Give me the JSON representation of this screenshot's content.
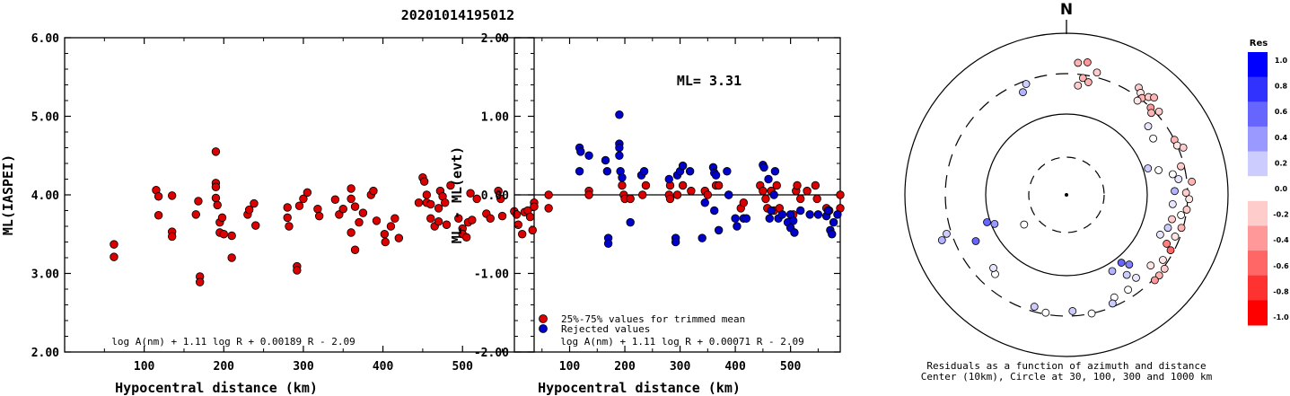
{
  "page_title": "20201014195012",
  "chart_data": [
    {
      "type": "scatter",
      "ylabel": "ML(IASPEI)",
      "xlabel": "Hypocentral distance (km)",
      "xlim": [
        0,
        590
      ],
      "ylim": [
        2.0,
        6.0
      ],
      "xticks": [
        100,
        200,
        300,
        400,
        500
      ],
      "yticks": [
        "2.00",
        "3.00",
        "4.00",
        "5.00",
        "6.00"
      ],
      "formula": "log A(nm) + 1.11 log R + 0.00189 R - 2.09",
      "points": [
        [
          62,
          3.37
        ],
        [
          62,
          3.21
        ],
        [
          115,
          4.06
        ],
        [
          118,
          3.98
        ],
        [
          118,
          3.74
        ],
        [
          135,
          3.99
        ],
        [
          135,
          3.53
        ],
        [
          135,
          3.47
        ],
        [
          165,
          3.75
        ],
        [
          168,
          3.92
        ],
        [
          170,
          2.96
        ],
        [
          170,
          2.89
        ],
        [
          190,
          4.55
        ],
        [
          190,
          4.15
        ],
        [
          190,
          4.1
        ],
        [
          190,
          3.96
        ],
        [
          192,
          3.87
        ],
        [
          195,
          3.65
        ],
        [
          195,
          3.52
        ],
        [
          198,
          3.71
        ],
        [
          200,
          3.5
        ],
        [
          210,
          3.2
        ],
        [
          210,
          3.48
        ],
        [
          230,
          3.75
        ],
        [
          232,
          3.81
        ],
        [
          238,
          3.89
        ],
        [
          240,
          3.61
        ],
        [
          280,
          3.84
        ],
        [
          280,
          3.71
        ],
        [
          282,
          3.6
        ],
        [
          292,
          3.09
        ],
        [
          292,
          3.04
        ],
        [
          295,
          3.86
        ],
        [
          300,
          3.95
        ],
        [
          305,
          4.03
        ],
        [
          318,
          3.82
        ],
        [
          320,
          3.73
        ],
        [
          340,
          3.94
        ],
        [
          345,
          3.75
        ],
        [
          350,
          3.82
        ],
        [
          360,
          4.08
        ],
        [
          360,
          3.95
        ],
        [
          360,
          3.52
        ],
        [
          365,
          3.85
        ],
        [
          365,
          3.3
        ],
        [
          370,
          3.65
        ],
        [
          375,
          3.77
        ],
        [
          385,
          4.0
        ],
        [
          388,
          4.05
        ],
        [
          392,
          3.67
        ],
        [
          402,
          3.5
        ],
        [
          403,
          3.4
        ],
        [
          410,
          3.6
        ],
        [
          415,
          3.7
        ],
        [
          420,
          3.45
        ],
        [
          445,
          3.9
        ],
        [
          450,
          4.22
        ],
        [
          452,
          4.17
        ],
        [
          455,
          4.0
        ],
        [
          455,
          3.9
        ],
        [
          460,
          3.88
        ],
        [
          460,
          3.7
        ],
        [
          465,
          3.6
        ],
        [
          470,
          3.83
        ],
        [
          470,
          3.66
        ],
        [
          472,
          4.05
        ],
        [
          475,
          3.98
        ],
        [
          478,
          3.9
        ],
        [
          480,
          3.62
        ],
        [
          485,
          4.12
        ],
        [
          495,
          3.7
        ],
        [
          500,
          3.57
        ],
        [
          500,
          3.5
        ],
        [
          505,
          3.46
        ],
        [
          507,
          3.65
        ],
        [
          510,
          4.02
        ],
        [
          512,
          3.68
        ],
        [
          518,
          3.95
        ],
        [
          530,
          3.76
        ],
        [
          535,
          3.7
        ],
        [
          545,
          4.05
        ],
        [
          548,
          3.95
        ],
        [
          550,
          3.73
        ],
        [
          565,
          3.79
        ],
        [
          568,
          3.75
        ],
        [
          570,
          3.62
        ],
        [
          575,
          3.5
        ],
        [
          578,
          3.78
        ],
        [
          582,
          3.8
        ],
        [
          585,
          3.72
        ],
        [
          588,
          3.55
        ],
        [
          590,
          3.9
        ],
        [
          593,
          3.85
        ]
      ]
    },
    {
      "type": "scatter",
      "ylabel": "ML - ML(evt)",
      "xlabel": "Hypocentral distance (km)",
      "xlim": [
        0,
        590
      ],
      "ylim": [
        -2.0,
        2.0
      ],
      "xticks": [
        100,
        200,
        300,
        400,
        500
      ],
      "yticks": [
        "-2.00",
        "-1.00",
        "0.00",
        "1.00",
        "2.00"
      ],
      "annotation": "ML= 3.31",
      "formula": "log A(nm) + 1.11 log R + 0.00071 R - 2.09",
      "legend": [
        {
          "label": "25%-75% values for trimmed mean",
          "color": "#dd0000"
        },
        {
          "label": "Rejected values",
          "color": "#0000cc"
        }
      ],
      "series": [
        {
          "name": "25%-75% values for trimmed mean",
          "points": [
            [
              62,
              0.0
            ],
            [
              62,
              -0.17
            ],
            [
              135,
              0.05
            ],
            [
              135,
              0.0
            ],
            [
              195,
              0.12
            ],
            [
              198,
              0.0
            ],
            [
              200,
              -0.05
            ],
            [
              210,
              -0.05
            ],
            [
              232,
              0.0
            ],
            [
              238,
              0.12
            ],
            [
              280,
              0.0
            ],
            [
              282,
              -0.05
            ],
            [
              282,
              0.12
            ],
            [
              295,
              0.0
            ],
            [
              305,
              0.12
            ],
            [
              320,
              0.05
            ],
            [
              345,
              0.05
            ],
            [
              350,
              0.0
            ],
            [
              365,
              0.12
            ],
            [
              370,
              0.12
            ],
            [
              388,
              0.0
            ],
            [
              410,
              -0.17
            ],
            [
              415,
              -0.1
            ],
            [
              445,
              0.12
            ],
            [
              450,
              0.05
            ],
            [
              455,
              -0.05
            ],
            [
              458,
              -0.17
            ],
            [
              465,
              0.05
            ],
            [
              470,
              -0.2
            ],
            [
              475,
              0.12
            ],
            [
              480,
              -0.17
            ],
            [
              505,
              -0.25
            ],
            [
              510,
              0.05
            ],
            [
              512,
              0.12
            ],
            [
              518,
              -0.05
            ],
            [
              530,
              0.05
            ],
            [
              545,
              0.12
            ],
            [
              548,
              -0.05
            ],
            [
              565,
              -0.17
            ],
            [
              570,
              -0.2
            ],
            [
              590,
              -0.17
            ],
            [
              593,
              0.0
            ]
          ]
        },
        {
          "name": "Rejected values",
          "points": [
            [
              118,
              0.6
            ],
            [
              120,
              0.55
            ],
            [
              118,
              0.3
            ],
            [
              135,
              0.5
            ],
            [
              165,
              0.44
            ],
            [
              168,
              0.3
            ],
            [
              170,
              -0.55
            ],
            [
              170,
              -0.62
            ],
            [
              190,
              1.02
            ],
            [
              190,
              0.65
            ],
            [
              190,
              0.6
            ],
            [
              190,
              0.5
            ],
            [
              192,
              0.3
            ],
            [
              195,
              0.22
            ],
            [
              210,
              -0.35
            ],
            [
              230,
              0.25
            ],
            [
              235,
              0.3
            ],
            [
              280,
              0.2
            ],
            [
              292,
              -0.55
            ],
            [
              292,
              -0.6
            ],
            [
              295,
              0.25
            ],
            [
              300,
              0.3
            ],
            [
              305,
              0.37
            ],
            [
              318,
              0.3
            ],
            [
              340,
              -0.55
            ],
            [
              345,
              -0.1
            ],
            [
              360,
              0.35
            ],
            [
              362,
              0.28
            ],
            [
              362,
              -0.2
            ],
            [
              365,
              0.25
            ],
            [
              370,
              -0.45
            ],
            [
              385,
              0.3
            ],
            [
              388,
              0.0
            ],
            [
              400,
              -0.3
            ],
            [
              403,
              -0.4
            ],
            [
              415,
              -0.3
            ],
            [
              420,
              -0.3
            ],
            [
              450,
              0.38
            ],
            [
              452,
              0.35
            ],
            [
              460,
              0.2
            ],
            [
              462,
              -0.3
            ],
            [
              465,
              -0.2
            ],
            [
              470,
              0.0
            ],
            [
              472,
              0.3
            ],
            [
              478,
              -0.3
            ],
            [
              485,
              -0.25
            ],
            [
              495,
              -0.35
            ],
            [
              500,
              -0.42
            ],
            [
              500,
              -0.25
            ],
            [
              505,
              -0.33
            ],
            [
              507,
              -0.48
            ],
            [
              518,
              -0.2
            ],
            [
              535,
              -0.25
            ],
            [
              550,
              -0.25
            ],
            [
              565,
              -0.27
            ],
            [
              568,
              -0.2
            ],
            [
              572,
              -0.45
            ],
            [
              575,
              -0.5
            ],
            [
              578,
              -0.35
            ],
            [
              585,
              -0.25
            ]
          ]
        }
      ]
    },
    {
      "type": "polar-scatter",
      "north_label": "N",
      "caption_line1": "Residuals as a function of azimuth and distance",
      "caption_line2": "Center (10km), Circle at 30, 100, 300 and 1000 km",
      "colorbar_title": "Res",
      "colorbar_ticks": [
        "1.0",
        "0.8",
        "0.6",
        "0.4",
        "0.2",
        "0.0",
        "-0.2",
        "-0.4",
        "-0.6",
        "-0.8",
        "-1.0"
      ],
      "colorbar_colors": [
        "#0000ff",
        "#3232ff",
        "#6666ff",
        "#9999ff",
        "#ccccff",
        "#ffffff",
        "#ffcccc",
        "#ff9999",
        "#ff6666",
        "#ff3232",
        "#ff0000"
      ],
      "points": [
        {
          "az": 5,
          "r": 0.82,
          "res": -0.3
        },
        {
          "az": 9,
          "r": 0.83,
          "res": -0.4
        },
        {
          "az": 14,
          "r": 0.78,
          "res": -0.2
        },
        {
          "az": 8,
          "r": 0.73,
          "res": -0.3
        },
        {
          "az": 11,
          "r": 0.71,
          "res": -0.3
        },
        {
          "az": 6,
          "r": 0.68,
          "res": -0.2
        },
        {
          "az": -20,
          "r": 0.73,
          "res": 0.2
        },
        {
          "az": -23,
          "r": 0.69,
          "res": 0.3
        },
        {
          "az": 34,
          "r": 0.8,
          "res": -0.2
        },
        {
          "az": 36,
          "r": 0.78,
          "res": -0.1
        },
        {
          "az": 38,
          "r": 0.76,
          "res": -0.3
        },
        {
          "az": 40,
          "r": 0.79,
          "res": -0.2
        },
        {
          "az": 42,
          "r": 0.81,
          "res": -0.3
        },
        {
          "az": 37,
          "r": 0.73,
          "res": -0.1
        },
        {
          "az": 44,
          "r": 0.75,
          "res": -0.4
        },
        {
          "az": 46,
          "r": 0.73,
          "res": -0.3
        },
        {
          "az": 48,
          "r": 0.77,
          "res": -0.2
        },
        {
          "az": 50,
          "r": 0.66,
          "res": 0.1
        },
        {
          "az": 57,
          "r": 0.64,
          "res": 0.0
        },
        {
          "az": 63,
          "r": 0.75,
          "res": -0.3
        },
        {
          "az": 66,
          "r": 0.75,
          "res": -0.1
        },
        {
          "az": 68,
          "r": 0.78,
          "res": -0.2
        },
        {
          "az": 72,
          "r": 0.53,
          "res": 0.2
        },
        {
          "az": 75,
          "r": 0.59,
          "res": 0.0
        },
        {
          "az": 76,
          "r": 0.73,
          "res": -0.2
        },
        {
          "az": 79,
          "r": 0.67,
          "res": 0.0
        },
        {
          "az": 82,
          "r": 0.7,
          "res": 0.1
        },
        {
          "az": 84,
          "r": 0.78,
          "res": -0.3
        },
        {
          "az": 88,
          "r": 0.67,
          "res": 0.3
        },
        {
          "az": 89,
          "r": 0.74,
          "res": -0.2
        },
        {
          "az": 92,
          "r": 0.76,
          "res": -0.1
        },
        {
          "az": 95,
          "r": 0.66,
          "res": 0.1
        },
        {
          "az": 97,
          "r": 0.75,
          "res": -0.2
        },
        {
          "az": 100,
          "r": 0.72,
          "res": 0.0
        },
        {
          "az": 103,
          "r": 0.67,
          "res": -0.2
        },
        {
          "az": 106,
          "r": 0.74,
          "res": -0.3
        },
        {
          "az": 108,
          "r": 0.66,
          "res": 0.2
        },
        {
          "az": 111,
          "r": 0.72,
          "res": -0.1
        },
        {
          "az": 113,
          "r": 0.63,
          "res": 0.1
        },
        {
          "az": 116,
          "r": 0.69,
          "res": -0.5
        },
        {
          "az": 118,
          "r": 0.73,
          "res": -0.6
        },
        {
          "az": 124,
          "r": 0.72,
          "res": -0.1
        },
        {
          "az": 127,
          "r": 0.76,
          "res": -0.2
        },
        {
          "az": 131,
          "r": 0.76,
          "res": -0.3
        },
        {
          "az": 134,
          "r": 0.76,
          "res": -0.4
        },
        {
          "az": 130,
          "r": 0.68,
          "res": -0.1
        },
        {
          "az": 140,
          "r": 0.67,
          "res": 0.1
        },
        {
          "az": 143,
          "r": 0.62,
          "res": 0.2
        },
        {
          "az": 138,
          "r": 0.58,
          "res": 0.5
        },
        {
          "az": 141,
          "r": 0.54,
          "res": 0.6
        },
        {
          "az": 149,
          "r": 0.55,
          "res": 0.3
        },
        {
          "az": 147,
          "r": 0.7,
          "res": 0.0
        },
        {
          "az": 155,
          "r": 0.7,
          "res": 0.0
        },
        {
          "az": 157,
          "r": 0.73,
          "res": 0.2
        },
        {
          "az": 168,
          "r": 0.75,
          "res": 0.0
        },
        {
          "az": 177,
          "r": 0.72,
          "res": 0.2
        },
        {
          "az": 190,
          "r": 0.74,
          "res": 0.0
        },
        {
          "az": 196,
          "r": 0.72,
          "res": 0.2
        },
        {
          "az": 222,
          "r": 0.66,
          "res": 0.0
        },
        {
          "az": 225,
          "r": 0.64,
          "res": 0.1
        },
        {
          "az": 235,
          "r": 0.32,
          "res": 0.0
        },
        {
          "az": 248,
          "r": 0.48,
          "res": 0.4
        },
        {
          "az": 251,
          "r": 0.52,
          "res": 0.6
        },
        {
          "az": 250,
          "r": 0.82,
          "res": 0.3
        },
        {
          "az": 252,
          "r": 0.78,
          "res": 0.2
        },
        {
          "az": 243,
          "r": 0.63,
          "res": 0.6
        }
      ]
    }
  ]
}
